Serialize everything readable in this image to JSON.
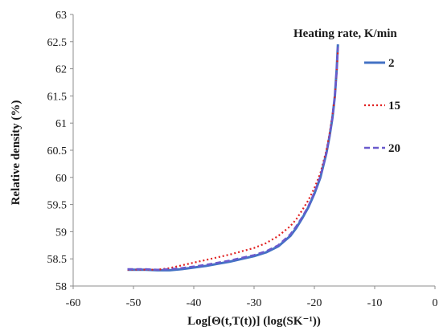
{
  "chart_data": {
    "type": "line",
    "title": "",
    "xlabel": "Log[Θ(t,T(t))]  (log(SK⁻¹))",
    "ylabel": "Relative density (%)",
    "xlim": [
      -60,
      0
    ],
    "ylim": [
      58,
      63
    ],
    "x_ticks": [
      -60,
      -50,
      -40,
      -30,
      -20,
      -10,
      0
    ],
    "y_ticks": [
      58,
      58.5,
      59,
      59.5,
      60,
      60.5,
      61,
      61.5,
      62,
      62.5,
      63
    ],
    "grid": false,
    "legend_title": "Heating rate, K/min",
    "legend_position": "top-right",
    "series": [
      {
        "name": "2",
        "color": "#4472C4",
        "style": "solid",
        "x": [
          -51,
          -48,
          -46,
          -44,
          -42,
          -40,
          -38,
          -36,
          -34,
          -32,
          -30,
          -28,
          -26,
          -24,
          -23,
          -22,
          -21,
          -20,
          -19,
          -18,
          -17.5,
          -17,
          -16.6,
          -16.3,
          -16.1
        ],
        "y": [
          58.3,
          58.3,
          58.29,
          58.29,
          58.31,
          58.34,
          58.37,
          58.41,
          58.45,
          58.5,
          58.55,
          58.62,
          58.73,
          58.92,
          59.07,
          59.25,
          59.45,
          59.7,
          60.0,
          60.45,
          60.75,
          61.1,
          61.5,
          62.0,
          62.45
        ]
      },
      {
        "name": "15",
        "color": "#E02020",
        "style": "dotted",
        "x": [
          -51,
          -48,
          -46,
          -44,
          -42,
          -40,
          -38,
          -36,
          -34,
          -32,
          -30,
          -28,
          -26,
          -24,
          -23,
          -22,
          -21,
          -20,
          -19,
          -18,
          -17.5,
          -17,
          -16.6,
          -16.3,
          -16.1
        ],
        "y": [
          58.3,
          58.3,
          58.3,
          58.33,
          58.38,
          58.43,
          58.48,
          58.53,
          58.58,
          58.64,
          58.7,
          58.79,
          58.92,
          59.1,
          59.23,
          59.4,
          59.58,
          59.8,
          60.08,
          60.5,
          60.8,
          61.15,
          61.5,
          61.95,
          62.35
        ]
      },
      {
        "name": "20",
        "color": "#6A5ACD",
        "style": "dashed",
        "x": [
          -51,
          -48,
          -46,
          -44,
          -42,
          -40,
          -38,
          -36,
          -34,
          -32,
          -30,
          -28,
          -26,
          -24,
          -23,
          -22,
          -21,
          -20,
          -19,
          -18,
          -17.5,
          -17,
          -16.6,
          -16.3,
          -16.1
        ],
        "y": [
          58.31,
          58.31,
          58.3,
          58.31,
          58.33,
          58.36,
          58.39,
          58.43,
          58.47,
          58.52,
          58.57,
          58.64,
          58.75,
          58.95,
          59.1,
          59.27,
          59.47,
          59.72,
          60.02,
          60.45,
          60.75,
          61.1,
          61.5,
          61.98,
          62.4
        ]
      }
    ]
  }
}
